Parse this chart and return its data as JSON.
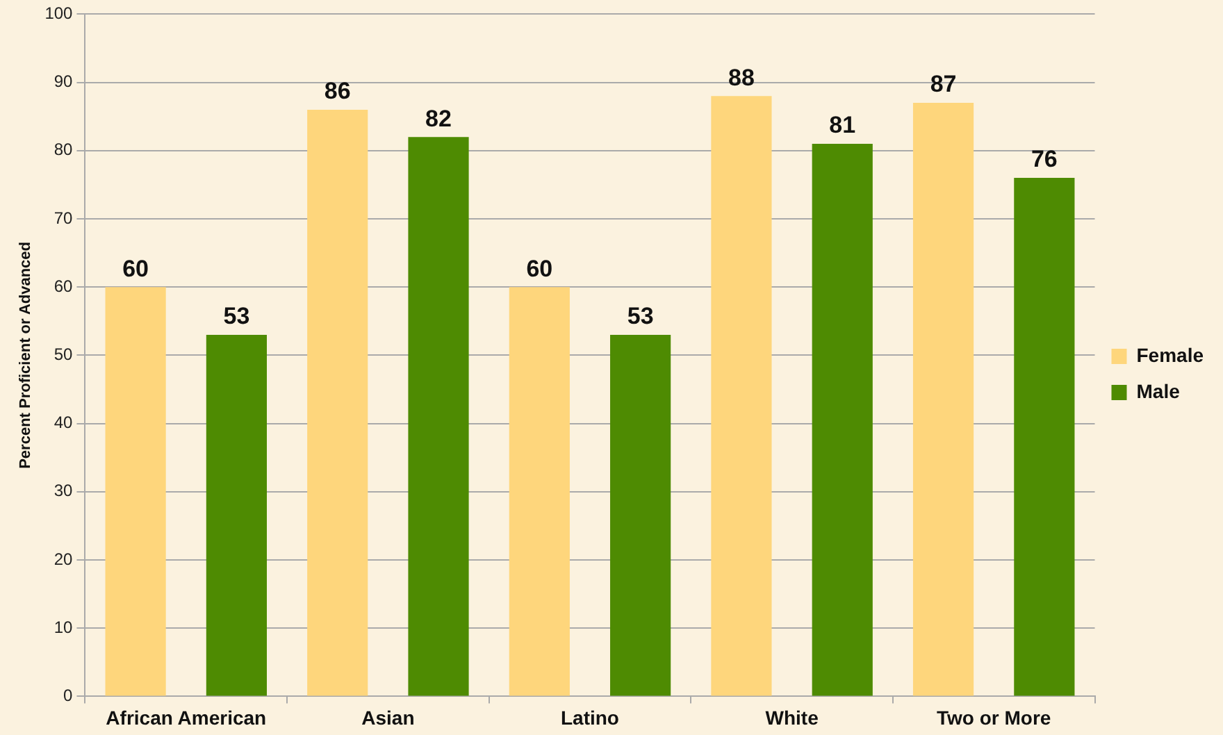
{
  "chart_data": {
    "type": "bar",
    "ylabel": "Percent Proficient or Advanced",
    "categories": [
      "African American",
      "Asian",
      "Latino",
      "White",
      "Two or More"
    ],
    "series": [
      {
        "name": "Female",
        "color": "#fed67c",
        "values": [
          60,
          86,
          60,
          88,
          87
        ]
      },
      {
        "name": "Male",
        "color": "#4e8b02",
        "values": [
          53,
          82,
          53,
          81,
          76
        ]
      }
    ],
    "ylim": [
      0,
      100
    ],
    "yticks": [
      0,
      10,
      20,
      30,
      40,
      50,
      60,
      70,
      80,
      90,
      100
    ],
    "grid": "y",
    "legend": "right",
    "data_labels": true
  }
}
